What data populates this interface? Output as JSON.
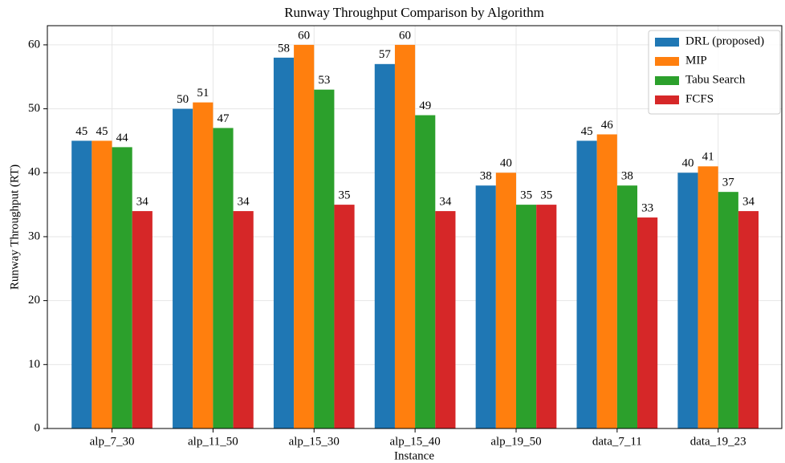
{
  "chart_data": {
    "type": "bar",
    "title": "Runway Throughput Comparison by Algorithm",
    "x_label": "Instance",
    "y_label": "Runway Throughput (RT)",
    "categories": [
      "alp_7_30",
      "alp_11_50",
      "alp_15_30",
      "alp_15_40",
      "alp_19_50",
      "data_7_11",
      "data_19_23"
    ],
    "series": [
      {
        "name": "DRL (proposed)",
        "color": "#1f77b4",
        "values": [
          45,
          50,
          58,
          57,
          38,
          45,
          40
        ]
      },
      {
        "name": "MIP",
        "color": "#ff7f0e",
        "values": [
          45,
          51,
          60,
          60,
          40,
          46,
          41
        ]
      },
      {
        "name": "Tabu Search",
        "color": "#2ca02c",
        "values": [
          44,
          47,
          53,
          49,
          35,
          38,
          37
        ]
      },
      {
        "name": "FCFS",
        "color": "#d62728",
        "values": [
          34,
          34,
          35,
          34,
          35,
          33,
          34
        ]
      }
    ],
    "ylim": [
      0,
      63
    ],
    "yticks": [
      0,
      10,
      20,
      30,
      40,
      50,
      60
    ],
    "grid": true,
    "legend": "upper right"
  }
}
